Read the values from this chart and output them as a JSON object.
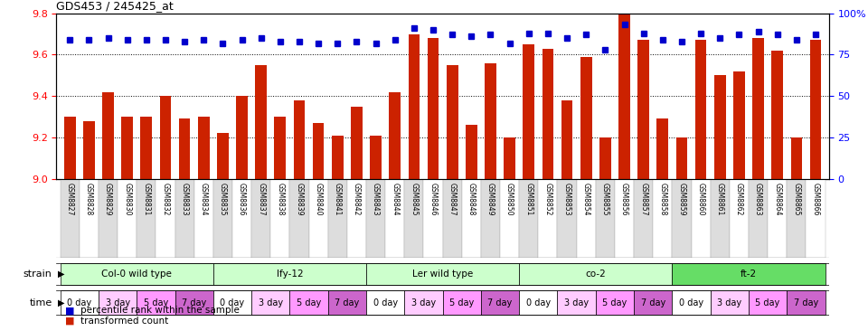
{
  "title": "GDS453 / 245425_at",
  "samples": [
    "GSM8827",
    "GSM8828",
    "GSM8829",
    "GSM8830",
    "GSM8831",
    "GSM8832",
    "GSM8833",
    "GSM8834",
    "GSM8835",
    "GSM8836",
    "GSM8837",
    "GSM8838",
    "GSM8839",
    "GSM8840",
    "GSM8841",
    "GSM8842",
    "GSM8843",
    "GSM8844",
    "GSM8845",
    "GSM8846",
    "GSM8847",
    "GSM8848",
    "GSM8849",
    "GSM8850",
    "GSM8851",
    "GSM8852",
    "GSM8853",
    "GSM8854",
    "GSM8855",
    "GSM8856",
    "GSM8857",
    "GSM8858",
    "GSM8859",
    "GSM8860",
    "GSM8861",
    "GSM8862",
    "GSM8863",
    "GSM8864",
    "GSM8865",
    "GSM8866"
  ],
  "bar_values": [
    9.3,
    9.28,
    9.42,
    9.3,
    9.3,
    9.4,
    9.29,
    9.3,
    9.22,
    9.4,
    9.55,
    9.3,
    9.38,
    9.27,
    9.21,
    9.35,
    9.21,
    9.42,
    9.7,
    9.68,
    9.55,
    9.26,
    9.56,
    9.2,
    9.65,
    9.63,
    9.38,
    9.59,
    9.2,
    9.8,
    9.67,
    9.29,
    9.2,
    9.67,
    9.5,
    9.52,
    9.68,
    9.62,
    9.2,
    9.67
  ],
  "percentile_values": [
    84,
    84,
    85,
    84,
    84,
    84,
    83,
    84,
    82,
    84,
    85,
    83,
    83,
    82,
    82,
    83,
    82,
    84,
    91,
    90,
    87,
    86,
    87,
    82,
    88,
    88,
    85,
    87,
    78,
    93,
    88,
    84,
    83,
    88,
    85,
    87,
    89,
    87,
    84,
    87
  ],
  "bar_color": "#CC2200",
  "dot_color": "#0000CC",
  "ylim_left": [
    9.0,
    9.8
  ],
  "ylim_right": [
    0,
    100
  ],
  "yticks_left": [
    9.0,
    9.2,
    9.4,
    9.6,
    9.8
  ],
  "yticks_right": [
    0,
    25,
    50,
    75,
    100
  ],
  "grid_values": [
    9.2,
    9.4,
    9.6
  ],
  "strains": [
    {
      "label": "Col-0 wild type",
      "start": 0,
      "end": 8,
      "color": "#CCFFCC"
    },
    {
      "label": "lfy-12",
      "start": 8,
      "end": 16,
      "color": "#CCFFCC"
    },
    {
      "label": "Ler wild type",
      "start": 16,
      "end": 24,
      "color": "#CCFFCC"
    },
    {
      "label": "co-2",
      "start": 24,
      "end": 32,
      "color": "#CCFFCC"
    },
    {
      "label": "ft-2",
      "start": 32,
      "end": 40,
      "color": "#66DD66"
    }
  ],
  "time_labels": [
    "0 day",
    "3 day",
    "5 day",
    "7 day"
  ],
  "time_colors": [
    "#FFFFFF",
    "#FFCCFF",
    "#FF99FF",
    "#CC66CC"
  ],
  "tick_bg_colors": [
    "#DDDDDD",
    "#FFFFFF"
  ],
  "legend_items": [
    {
      "color": "#CC2200",
      "marker": "s",
      "label": "transformed count"
    },
    {
      "color": "#0000CC",
      "marker": "s",
      "label": "percentile rank within the sample"
    }
  ]
}
